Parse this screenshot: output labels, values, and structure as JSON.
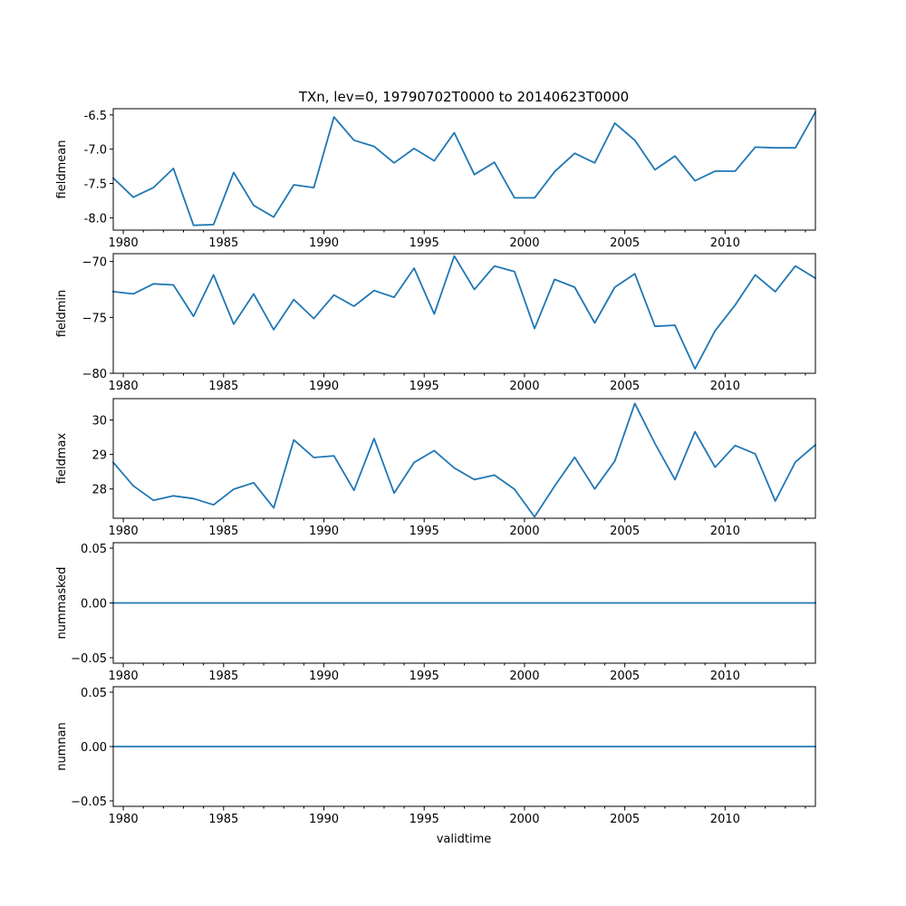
{
  "chart_data": {
    "type": "line",
    "title": "TXn, lev=0, 19790702T0000 to 20140623T0000",
    "xlabel": "validtime",
    "x": [
      1979.5,
      1980.5,
      1981.5,
      1982.5,
      1983.5,
      1984.5,
      1985.5,
      1986.5,
      1987.5,
      1988.5,
      1989.5,
      1990.5,
      1991.5,
      1992.5,
      1993.5,
      1994.5,
      1995.5,
      1996.5,
      1997.5,
      1998.5,
      1999.5,
      2000.5,
      2001.5,
      2002.5,
      2003.5,
      2004.5,
      2005.5,
      2006.5,
      2007.5,
      2008.5,
      2009.5,
      2010.5,
      2011.5,
      2012.5,
      2013.5,
      2014.5
    ],
    "xlim": [
      1979.5,
      2014.5
    ],
    "x_ticks": [
      1980,
      1985,
      1990,
      1995,
      2000,
      2005,
      2010
    ],
    "x_tick_labels": [
      "1980",
      "1985",
      "1990",
      "1995",
      "2000",
      "2005",
      "2010"
    ],
    "panels": [
      {
        "ylabel": "fieldmean",
        "ylim": [
          -8.18,
          -6.41
        ],
        "y_ticks": [
          -6.5,
          -7.0,
          -7.5,
          -8.0
        ],
        "y_tick_labels": [
          "-6.5",
          "-7.0",
          "-7.5",
          "-8.0"
        ],
        "values": [
          -7.42,
          -7.7,
          -7.56,
          -7.28,
          -8.11,
          -8.1,
          -7.34,
          -7.82,
          -7.99,
          -7.52,
          -7.56,
          -6.53,
          -6.87,
          -6.96,
          -7.2,
          -6.99,
          -7.17,
          -6.76,
          -7.37,
          -7.19,
          -7.71,
          -7.71,
          -7.33,
          -7.06,
          -7.2,
          -6.62,
          -6.87,
          -7.3,
          -7.1,
          -7.46,
          -7.32,
          -7.32,
          -6.97,
          -6.98,
          -6.98,
          -6.46
        ]
      },
      {
        "ylabel": "fieldmin",
        "ylim": [
          -80.0,
          -69.3
        ],
        "y_ticks": [
          -70,
          -75,
          -80
        ],
        "y_tick_labels": [
          "−70",
          "−75",
          "−80"
        ],
        "values": [
          -72.7,
          -72.9,
          -72.0,
          -72.1,
          -74.9,
          -71.2,
          -75.6,
          -72.9,
          -76.1,
          -73.4,
          -75.1,
          -73.0,
          -74.0,
          -72.6,
          -73.2,
          -70.6,
          -74.7,
          -69.5,
          -72.5,
          -70.4,
          -70.9,
          -76.0,
          -71.6,
          -72.3,
          -75.5,
          -72.3,
          -71.1,
          -75.8,
          -75.7,
          -79.6,
          -76.2,
          -73.9,
          -71.2,
          -72.7,
          -70.4,
          -71.5
        ]
      },
      {
        "ylabel": "fieldmax",
        "ylim": [
          27.15,
          30.62
        ],
        "y_ticks": [
          28,
          29,
          30
        ],
        "y_tick_labels": [
          "28",
          "29",
          "30"
        ],
        "values": [
          28.77,
          28.09,
          27.67,
          27.8,
          27.72,
          27.54,
          27.99,
          28.18,
          27.45,
          29.42,
          28.91,
          28.96,
          27.96,
          29.46,
          27.88,
          28.77,
          29.11,
          28.61,
          28.27,
          28.4,
          27.99,
          27.19,
          28.08,
          28.92,
          28.0,
          28.81,
          30.48,
          29.32,
          28.27,
          29.66,
          28.63,
          29.26,
          29.02,
          27.65,
          28.78,
          29.28
        ]
      },
      {
        "ylabel": "nummasked",
        "ylim": [
          -0.055,
          0.055
        ],
        "y_ticks": [
          0.05,
          0.0,
          -0.05
        ],
        "y_tick_labels": [
          "0.05",
          "0.00",
          "−0.05"
        ],
        "values": [
          0,
          0,
          0,
          0,
          0,
          0,
          0,
          0,
          0,
          0,
          0,
          0,
          0,
          0,
          0,
          0,
          0,
          0,
          0,
          0,
          0,
          0,
          0,
          0,
          0,
          0,
          0,
          0,
          0,
          0,
          0,
          0,
          0,
          0,
          0,
          0
        ]
      },
      {
        "ylabel": "numnan",
        "ylim": [
          -0.055,
          0.055
        ],
        "y_ticks": [
          0.05,
          0.0,
          -0.05
        ],
        "y_tick_labels": [
          "0.05",
          "0.00",
          "−0.05"
        ],
        "values": [
          0,
          0,
          0,
          0,
          0,
          0,
          0,
          0,
          0,
          0,
          0,
          0,
          0,
          0,
          0,
          0,
          0,
          0,
          0,
          0,
          0,
          0,
          0,
          0,
          0,
          0,
          0,
          0,
          0,
          0,
          0,
          0,
          0,
          0,
          0,
          0
        ]
      }
    ],
    "line_color": "#1f77b4",
    "grid": false
  }
}
